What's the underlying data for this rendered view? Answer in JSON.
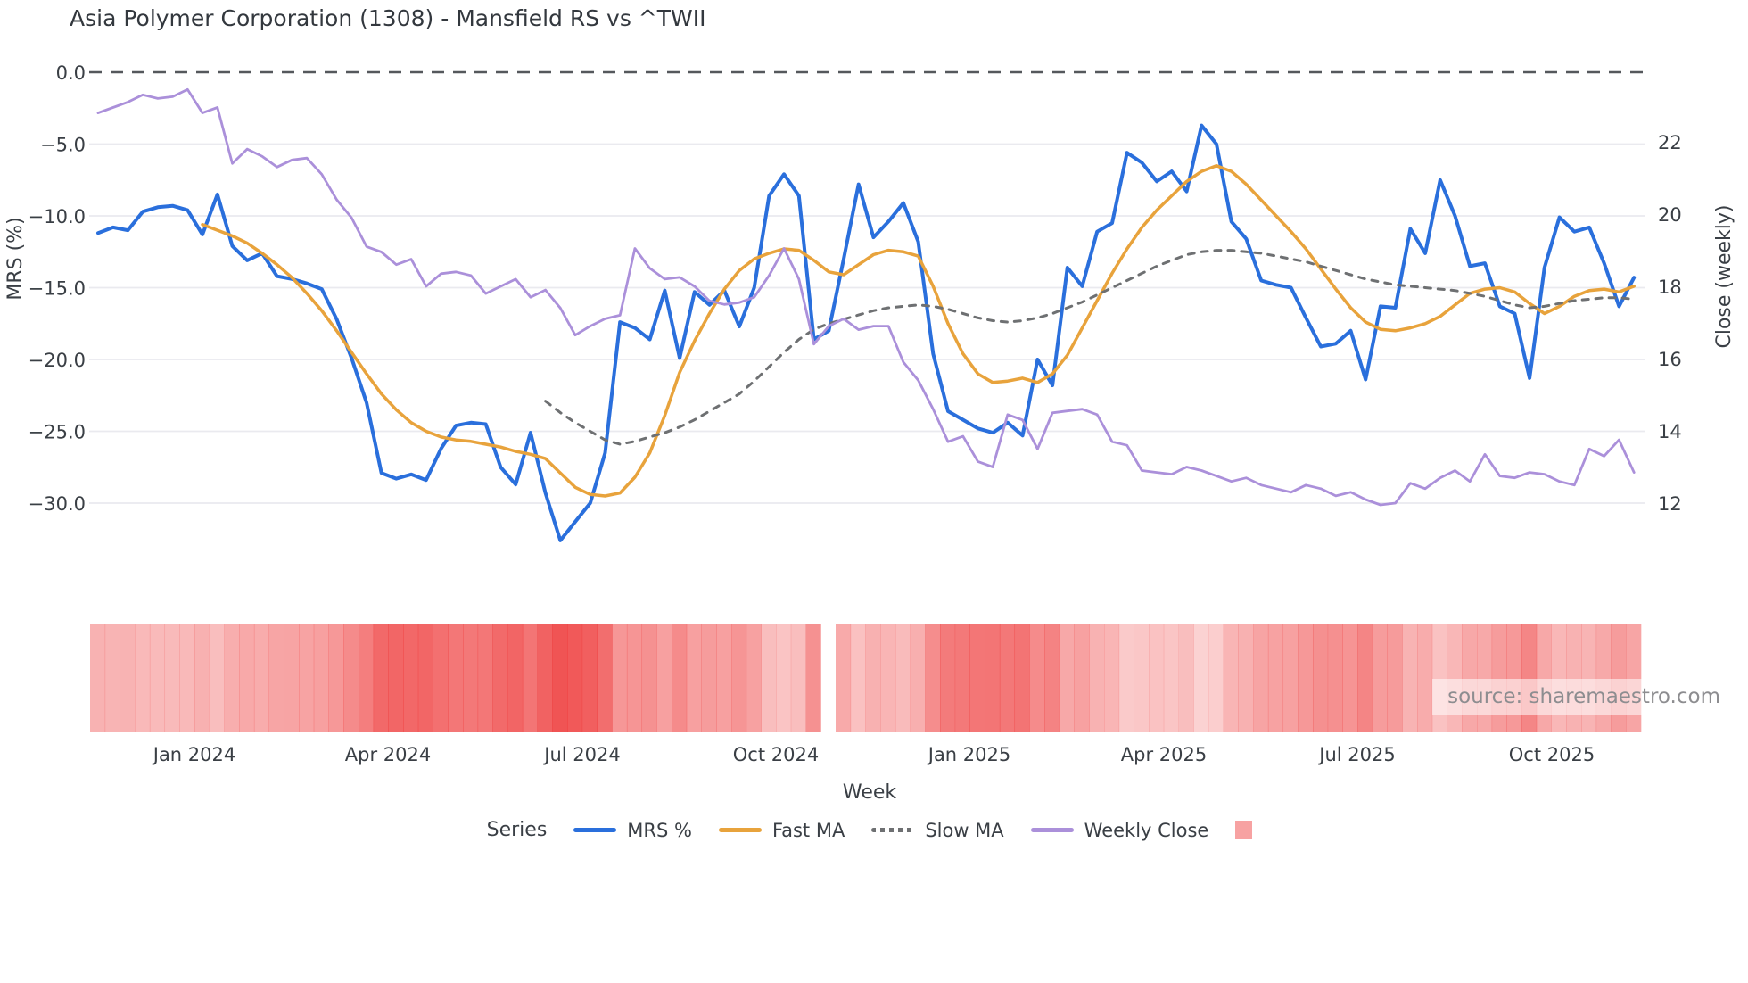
{
  "title": "Asia Polymer Corporation (1308) - Mansfield RS vs ^TWII",
  "source": "source: sharemaestro.com",
  "axes": {
    "x_label": "Week",
    "left_label": "MRS (%)",
    "right_label": "Close (weekly)",
    "left_ticks": [
      {
        "label": "0.0",
        "v": 0
      },
      {
        "label": "−5.0",
        "v": -5
      },
      {
        "label": "−10.0",
        "v": -10
      },
      {
        "label": "−15.0",
        "v": -15
      },
      {
        "label": "−20.0",
        "v": -20
      },
      {
        "label": "−25.0",
        "v": -25
      },
      {
        "label": "−30.0",
        "v": -30
      }
    ],
    "right_ticks": [
      {
        "label": "22",
        "v": 22
      },
      {
        "label": "20",
        "v": 20
      },
      {
        "label": "18",
        "v": 18
      },
      {
        "label": "16",
        "v": 16
      },
      {
        "label": "14",
        "v": 14
      },
      {
        "label": "12",
        "v": 12
      }
    ],
    "x_ticks": [
      {
        "label": "Jan 2024",
        "week": 6.46
      },
      {
        "label": "Apr 2024",
        "week": 19.46
      },
      {
        "label": "Jul 2024",
        "week": 32.46
      },
      {
        "label": "Oct 2024",
        "week": 45.46
      },
      {
        "label": "Jan 2025",
        "week": 58.46
      },
      {
        "label": "Apr 2025",
        "week": 71.46
      },
      {
        "label": "Jul 2025",
        "week": 84.46
      },
      {
        "label": "Oct 2025",
        "week": 97.46
      }
    ]
  },
  "legend": {
    "title": "Series",
    "items": [
      {
        "label": "MRS %",
        "color": "#2a6fdc",
        "style": "solid"
      },
      {
        "label": "Fast MA",
        "color": "#e8a33c",
        "style": "solid"
      },
      {
        "label": "Slow MA",
        "color": "#6e7072",
        "style": "dotted"
      },
      {
        "label": "Weekly Close",
        "color": "#ab90da",
        "style": "solid"
      },
      {
        "label": "",
        "color": "rgba(237,49,49,0.45)",
        "style": "square"
      }
    ]
  },
  "colors": {
    "mrs": "#2a6fdc",
    "fast_ma": "#e8a33c",
    "slow_ma": "#6e7072",
    "weekly_close": "#ab90da",
    "grid": "#eaeaef",
    "zero_line": "#55585c",
    "band_red": [
      237,
      49,
      49
    ],
    "tick_text": "#3a3f45"
  },
  "chart_data": {
    "type": "line",
    "title": "Asia Polymer Corporation (1308) - Mansfield RS vs ^TWII",
    "xlabel": "Week",
    "ylabel_left": "MRS (%)",
    "ylabel_right": "Close (weekly)",
    "x_unit": "week index (weekly data, ~Nov 2023 to ~Nov 2025)",
    "n_weeks": 104,
    "ylim_left": [
      -33.5,
      1.2
    ],
    "ylim_right": [
      11.0,
      23.9
    ],
    "grid": true,
    "legend_position": "bottom",
    "heatmap_band": {
      "description": "weekly red intensity strip derived from |MRS| (darker = more negative MRS)",
      "gap_index": 49,
      "intensity_domain": [
        -4,
        -33
      ]
    },
    "series": [
      {
        "name": "MRS %",
        "axis": "left",
        "style": "solid",
        "width": 4,
        "values": [
          -11.2,
          -10.8,
          -11.0,
          -9.7,
          -9.4,
          -9.3,
          -9.6,
          -11.3,
          -8.5,
          -12.1,
          -13.1,
          -12.6,
          -14.2,
          -14.4,
          -14.7,
          -15.1,
          -17.2,
          -19.9,
          -23.0,
          -27.9,
          -28.3,
          -28.0,
          -28.4,
          -26.2,
          -24.6,
          -24.4,
          -24.5,
          -27.5,
          -28.7,
          -25.1,
          -29.3,
          -32.6,
          -31.3,
          -30.0,
          -26.5,
          -17.4,
          -17.8,
          -18.6,
          -15.2,
          -19.9,
          -15.3,
          -16.2,
          -15.2,
          -17.7,
          -15.0,
          -8.6,
          -7.1,
          -8.6,
          -18.6,
          -18.0,
          -13.0,
          -7.8,
          -11.5,
          -10.4,
          -9.1,
          -11.8,
          -19.6,
          -23.6,
          -24.2,
          -24.8,
          -25.1,
          -24.4,
          -25.3,
          -20.0,
          -21.8,
          -13.6,
          -14.9,
          -11.1,
          -10.5,
          -5.6,
          -6.3,
          -7.6,
          -6.9,
          -8.3,
          -3.7,
          -5.0,
          -10.4,
          -11.6,
          -14.5,
          -14.8,
          -15.0,
          -17.1,
          -19.1,
          -18.9,
          -18.0,
          -21.4,
          -16.3,
          -16.4,
          -10.9,
          -12.6,
          -7.5,
          -10.0,
          -13.5,
          -13.3,
          -16.3,
          -16.8,
          -21.3,
          -13.6,
          -10.1,
          -11.1,
          -10.8,
          -13.3,
          -16.3,
          -14.3
        ]
      },
      {
        "name": "Fast MA",
        "axis": "left",
        "style": "solid",
        "width": 3.5,
        "values": [
          null,
          null,
          null,
          null,
          null,
          null,
          null,
          -10.6,
          -11.0,
          -11.4,
          -11.9,
          -12.6,
          -13.4,
          -14.3,
          -15.4,
          -16.6,
          -18.0,
          -19.5,
          -21.0,
          -22.4,
          -23.5,
          -24.4,
          -25.0,
          -25.4,
          -25.6,
          -25.7,
          -25.9,
          -26.1,
          -26.4,
          -26.6,
          -26.9,
          -27.9,
          -28.9,
          -29.4,
          -29.5,
          -29.3,
          -28.2,
          -26.5,
          -23.9,
          -20.9,
          -18.7,
          -16.8,
          -15.1,
          -13.8,
          -13.0,
          -12.6,
          -12.3,
          -12.4,
          -13.1,
          -13.9,
          -14.1,
          -13.4,
          -12.7,
          -12.4,
          -12.5,
          -12.8,
          -14.9,
          -17.5,
          -19.6,
          -21.0,
          -21.6,
          -21.5,
          -21.3,
          -21.6,
          -21.0,
          -19.7,
          -17.8,
          -15.9,
          -14.0,
          -12.3,
          -10.8,
          -9.6,
          -8.6,
          -7.6,
          -6.9,
          -6.5,
          -6.9,
          -7.8,
          -8.9,
          -10.0,
          -11.1,
          -12.3,
          -13.7,
          -15.1,
          -16.4,
          -17.4,
          -17.9,
          -18.0,
          -17.8,
          -17.5,
          -17.0,
          -16.2,
          -15.4,
          -15.1,
          -15.0,
          -15.3,
          -16.1,
          -16.8,
          -16.3,
          -15.6,
          -15.2,
          -15.1,
          -15.3,
          -14.9
        ]
      },
      {
        "name": "Slow MA",
        "axis": "left",
        "style": "dashed",
        "width": 3,
        "values": [
          null,
          null,
          null,
          null,
          null,
          null,
          null,
          null,
          null,
          null,
          null,
          null,
          null,
          null,
          null,
          null,
          null,
          null,
          null,
          null,
          null,
          null,
          null,
          null,
          null,
          null,
          null,
          null,
          null,
          null,
          -22.9,
          -23.7,
          -24.4,
          -25.0,
          -25.6,
          -25.9,
          -25.7,
          -25.4,
          -25.1,
          -24.7,
          -24.2,
          -23.6,
          -23.0,
          -22.4,
          -21.5,
          -20.5,
          -19.5,
          -18.6,
          -17.9,
          -17.5,
          -17.2,
          -16.9,
          -16.6,
          -16.4,
          -16.3,
          -16.2,
          -16.3,
          -16.5,
          -16.8,
          -17.1,
          -17.3,
          -17.4,
          -17.3,
          -17.1,
          -16.8,
          -16.4,
          -16.0,
          -15.5,
          -15.0,
          -14.5,
          -14.0,
          -13.5,
          -13.1,
          -12.7,
          -12.5,
          -12.4,
          -12.4,
          -12.5,
          -12.6,
          -12.8,
          -13.0,
          -13.2,
          -13.5,
          -13.8,
          -14.1,
          -14.4,
          -14.6,
          -14.8,
          -14.9,
          -15.0,
          -15.1,
          -15.2,
          -15.4,
          -15.6,
          -15.9,
          -16.2,
          -16.4,
          -16.3,
          -16.1,
          -15.9,
          -15.8,
          -15.7,
          -15.7,
          -15.8
        ]
      },
      {
        "name": "Weekly Close",
        "axis": "right",
        "style": "solid",
        "width": 2.8,
        "values": [
          22.8,
          22.95,
          23.1,
          23.3,
          23.2,
          23.25,
          23.45,
          22.8,
          22.95,
          21.4,
          21.8,
          21.6,
          21.3,
          21.5,
          21.55,
          21.1,
          20.4,
          19.9,
          19.1,
          18.95,
          18.6,
          18.75,
          18.0,
          18.35,
          18.4,
          18.3,
          17.8,
          18.0,
          18.2,
          17.7,
          17.9,
          17.4,
          16.65,
          16.9,
          17.1,
          17.2,
          19.05,
          18.5,
          18.2,
          18.25,
          18.0,
          17.6,
          17.5,
          17.55,
          17.7,
          18.3,
          19.05,
          18.2,
          16.4,
          16.9,
          17.1,
          16.8,
          16.9,
          16.9,
          15.9,
          15.4,
          14.6,
          13.7,
          13.85,
          13.15,
          13.0,
          14.45,
          14.3,
          13.5,
          14.5,
          14.55,
          14.6,
          14.45,
          13.7,
          13.6,
          12.9,
          12.85,
          12.8,
          13.0,
          12.9,
          12.75,
          12.6,
          12.7,
          12.5,
          12.4,
          12.3,
          12.5,
          12.4,
          12.2,
          12.3,
          12.1,
          11.95,
          12.0,
          12.55,
          12.4,
          12.7,
          12.9,
          12.6,
          13.35,
          12.75,
          12.7,
          12.85,
          12.8,
          12.6,
          12.5,
          13.5,
          13.3,
          13.75,
          12.85
        ]
      }
    ]
  }
}
